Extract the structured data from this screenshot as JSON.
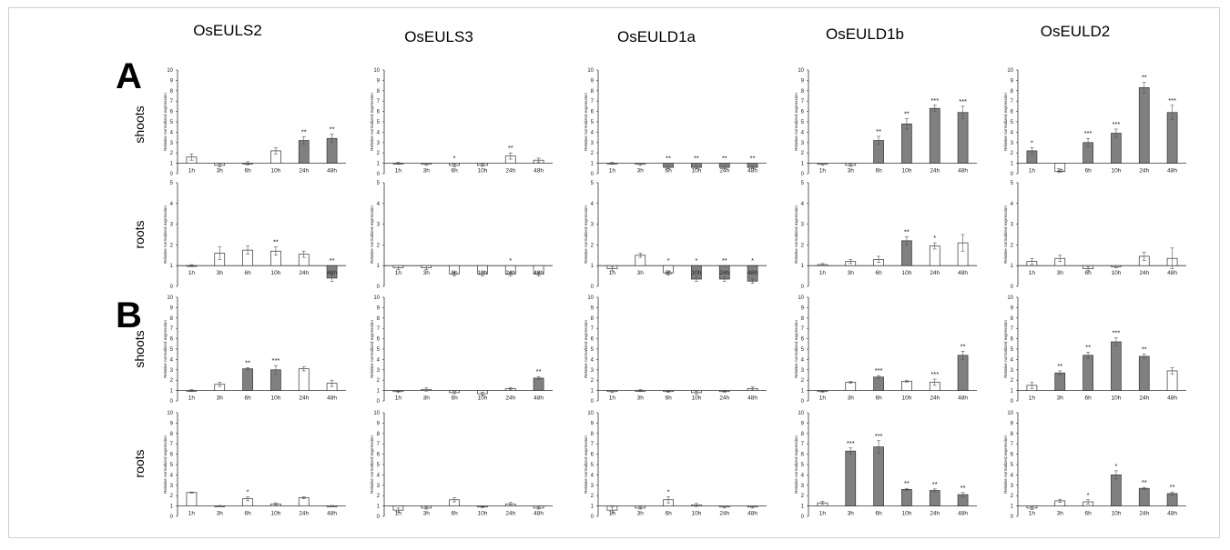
{
  "genes": [
    "OsEULS2",
    "OsEULS3",
    "OsEULD1a",
    "OsEULD1b",
    "OsEULD2"
  ],
  "panels": [
    "A",
    "B"
  ],
  "tissues": [
    "shoots",
    "roots"
  ],
  "ylabel": "Relative normalized expression",
  "categories": [
    "1h",
    "3h",
    "6h",
    "10h",
    "24h",
    "48h"
  ],
  "colors": {
    "significant": "#808080",
    "not_significant": "#ffffff",
    "outline": "#333333"
  },
  "chart_data": [
    {
      "panel": "A",
      "tissue": "shoots",
      "gene": "OsEULS2",
      "type": "bar",
      "ylim": [
        0,
        10
      ],
      "values": [
        1.6,
        0.8,
        1.0,
        2.2,
        3.2,
        3.4
      ],
      "errors": [
        0.3,
        0.15,
        0.15,
        0.3,
        0.35,
        0.4
      ],
      "significant": [
        false,
        false,
        false,
        false,
        true,
        true
      ],
      "stars": [
        "",
        "",
        "",
        "",
        "**",
        "**"
      ]
    },
    {
      "panel": "A",
      "tissue": "shoots",
      "gene": "OsEULS3",
      "type": "bar",
      "ylim": [
        0,
        10
      ],
      "values": [
        1.0,
        0.9,
        0.8,
        0.8,
        1.7,
        1.3
      ],
      "errors": [
        0.1,
        0.1,
        0.15,
        0.1,
        0.3,
        0.2
      ],
      "significant": [
        false,
        false,
        false,
        false,
        false,
        false
      ],
      "stars": [
        "",
        "",
        "*",
        "",
        "**",
        ""
      ]
    },
    {
      "panel": "A",
      "tissue": "shoots",
      "gene": "OsEULD1a",
      "type": "bar",
      "ylim": [
        0,
        10
      ],
      "values": [
        1.0,
        0.9,
        0.6,
        0.6,
        0.6,
        0.6
      ],
      "errors": [
        0.1,
        0.1,
        0.1,
        0.1,
        0.1,
        0.1
      ],
      "significant": [
        false,
        false,
        true,
        true,
        true,
        true
      ],
      "stars": [
        "",
        "",
        "**",
        "**",
        "**",
        "**"
      ]
    },
    {
      "panel": "A",
      "tissue": "shoots",
      "gene": "OsEULD1b",
      "type": "bar",
      "ylim": [
        0,
        10
      ],
      "values": [
        0.9,
        0.8,
        3.2,
        4.8,
        6.3,
        5.9
      ],
      "errors": [
        0.1,
        0.1,
        0.4,
        0.5,
        0.3,
        0.6
      ],
      "significant": [
        false,
        false,
        true,
        true,
        true,
        true
      ],
      "stars": [
        "",
        "",
        "**",
        "**",
        "***",
        "***"
      ]
    },
    {
      "panel": "A",
      "tissue": "shoots",
      "gene": "OsEULD2",
      "type": "bar",
      "ylim": [
        0,
        10
      ],
      "values": [
        2.2,
        0.2,
        3.0,
        3.9,
        8.3,
        5.9
      ],
      "errors": [
        0.3,
        0.05,
        0.4,
        0.4,
        0.5,
        0.7
      ],
      "significant": [
        true,
        false,
        true,
        true,
        true,
        true
      ],
      "stars": [
        "*",
        "",
        "***",
        "***",
        "**",
        "***"
      ]
    },
    {
      "panel": "A",
      "tissue": "roots",
      "gene": "OsEULS2",
      "type": "bar",
      "ylim": [
        0,
        5
      ],
      "values": [
        1.0,
        1.6,
        1.75,
        1.7,
        1.55,
        0.4
      ],
      "errors": [
        0.05,
        0.3,
        0.2,
        0.2,
        0.15,
        0.15
      ],
      "significant": [
        false,
        false,
        false,
        false,
        false,
        true
      ],
      "stars": [
        "",
        "",
        "",
        "**",
        "",
        "**"
      ]
    },
    {
      "panel": "A",
      "tissue": "roots",
      "gene": "OsEULS3",
      "type": "bar",
      "ylim": [
        0,
        5
      ],
      "values": [
        0.9,
        0.9,
        0.6,
        0.6,
        0.6,
        0.6
      ],
      "errors": [
        0.1,
        0.1,
        0.1,
        0.1,
        0.1,
        0.1
      ],
      "significant": [
        false,
        false,
        false,
        false,
        false,
        false
      ],
      "stars": [
        "",
        "",
        "",
        "",
        "*",
        ""
      ]
    },
    {
      "panel": "A",
      "tissue": "roots",
      "gene": "OsEULD1a",
      "type": "bar",
      "ylim": [
        0,
        5
      ],
      "values": [
        0.85,
        1.5,
        0.65,
        0.35,
        0.35,
        0.25
      ],
      "errors": [
        0.1,
        0.1,
        0.1,
        0.1,
        0.1,
        0.1
      ],
      "significant": [
        false,
        false,
        false,
        true,
        true,
        true
      ],
      "stars": [
        "",
        "",
        "*",
        "*",
        "**",
        "*"
      ]
    },
    {
      "panel": "A",
      "tissue": "roots",
      "gene": "OsEULD1b",
      "type": "bar",
      "ylim": [
        0,
        5
      ],
      "values": [
        1.05,
        1.2,
        1.3,
        2.2,
        1.95,
        2.1
      ],
      "errors": [
        0.05,
        0.1,
        0.15,
        0.2,
        0.15,
        0.4
      ],
      "significant": [
        false,
        false,
        false,
        true,
        false,
        false
      ],
      "stars": [
        "",
        "",
        "",
        "**",
        "*",
        ""
      ]
    },
    {
      "panel": "A",
      "tissue": "roots",
      "gene": "OsEULD2",
      "type": "bar",
      "ylim": [
        0,
        5
      ],
      "values": [
        1.2,
        1.35,
        0.85,
        0.95,
        1.45,
        1.35
      ],
      "errors": [
        0.15,
        0.15,
        0.1,
        0.05,
        0.2,
        0.5
      ],
      "significant": [
        false,
        false,
        false,
        false,
        false,
        false
      ],
      "stars": [
        "",
        "",
        "",
        "",
        "",
        ""
      ]
    },
    {
      "panel": "B",
      "tissue": "shoots",
      "gene": "OsEULS2",
      "type": "bar",
      "ylim": [
        0,
        10
      ],
      "values": [
        1.0,
        1.6,
        3.1,
        3.0,
        3.1,
        1.7
      ],
      "errors": [
        0.1,
        0.2,
        0.1,
        0.4,
        0.2,
        0.3
      ],
      "significant": [
        false,
        false,
        true,
        true,
        false,
        false
      ],
      "stars": [
        "",
        "",
        "**",
        "***",
        "",
        ""
      ]
    },
    {
      "panel": "B",
      "tissue": "shoots",
      "gene": "OsEULS3",
      "type": "bar",
      "ylim": [
        0,
        10
      ],
      "values": [
        0.9,
        1.1,
        0.8,
        0.7,
        1.2,
        2.2
      ],
      "errors": [
        0.05,
        0.15,
        0.1,
        0.15,
        0.1,
        0.15
      ],
      "significant": [
        false,
        false,
        false,
        false,
        false,
        true
      ],
      "stars": [
        "",
        "",
        "",
        "",
        "",
        "**"
      ]
    },
    {
      "panel": "B",
      "tissue": "shoots",
      "gene": "OsEULD1a",
      "type": "bar",
      "ylim": [
        0,
        10
      ],
      "values": [
        0.9,
        1.0,
        0.9,
        0.8,
        0.9,
        1.2
      ],
      "errors": [
        0.1,
        0.1,
        0.05,
        0.15,
        0.05,
        0.15
      ],
      "significant": [
        false,
        false,
        false,
        false,
        false,
        false
      ],
      "stars": [
        "",
        "",
        "",
        "",
        "",
        ""
      ]
    },
    {
      "panel": "B",
      "tissue": "shoots",
      "gene": "OsEULD1b",
      "type": "bar",
      "ylim": [
        0,
        10
      ],
      "values": [
        0.9,
        1.8,
        2.3,
        1.9,
        1.8,
        4.4
      ],
      "errors": [
        0.05,
        0.1,
        0.15,
        0.1,
        0.3,
        0.4
      ],
      "significant": [
        false,
        false,
        true,
        false,
        false,
        true
      ],
      "stars": [
        "",
        "",
        "***",
        "",
        "***",
        "**"
      ]
    },
    {
      "panel": "B",
      "tissue": "shoots",
      "gene": "OsEULD2",
      "type": "bar",
      "ylim": [
        0,
        10
      ],
      "values": [
        1.5,
        2.7,
        4.4,
        5.7,
        4.3,
        2.9
      ],
      "errors": [
        0.3,
        0.2,
        0.3,
        0.4,
        0.2,
        0.3
      ],
      "significant": [
        false,
        true,
        true,
        true,
        true,
        false
      ],
      "stars": [
        "",
        "**",
        "**",
        "***",
        "**",
        ""
      ]
    },
    {
      "panel": "B",
      "tissue": "roots",
      "gene": "OsEULS2",
      "type": "bar",
      "ylim": [
        0,
        10
      ],
      "values": [
        2.3,
        1.0,
        1.7,
        1.2,
        1.8,
        1.0
      ],
      "errors": [
        0.05,
        0.05,
        0.2,
        0.1,
        0.1,
        0.05
      ],
      "significant": [
        false,
        false,
        false,
        false,
        false,
        false
      ],
      "stars": [
        "",
        "",
        "*",
        "",
        "",
        ""
      ]
    },
    {
      "panel": "B",
      "tissue": "roots",
      "gene": "OsEULS3",
      "type": "bar",
      "ylim": [
        0,
        10
      ],
      "values": [
        0.6,
        0.8,
        1.6,
        0.9,
        1.2,
        0.8
      ],
      "errors": [
        0.2,
        0.1,
        0.2,
        0.05,
        0.15,
        0.1
      ],
      "significant": [
        false,
        false,
        false,
        false,
        false,
        false
      ],
      "stars": [
        "",
        "",
        "",
        "",
        "",
        ""
      ]
    },
    {
      "panel": "B",
      "tissue": "roots",
      "gene": "OsEULD1a",
      "type": "bar",
      "ylim": [
        0,
        10
      ],
      "values": [
        0.6,
        0.8,
        1.6,
        1.1,
        0.9,
        0.9
      ],
      "errors": [
        0.3,
        0.1,
        0.3,
        0.15,
        0.1,
        0.1
      ],
      "significant": [
        false,
        false,
        false,
        false,
        false,
        false
      ],
      "stars": [
        "",
        "",
        "*",
        "",
        "",
        ""
      ]
    },
    {
      "panel": "B",
      "tissue": "roots",
      "gene": "OsEULD1b",
      "type": "bar",
      "ylim": [
        0,
        10
      ],
      "values": [
        1.3,
        6.3,
        6.7,
        2.6,
        2.5,
        2.1
      ],
      "errors": [
        0.15,
        0.3,
        0.6,
        0.1,
        0.15,
        0.2
      ],
      "significant": [
        false,
        true,
        true,
        true,
        true,
        true
      ],
      "stars": [
        "",
        "***",
        "***",
        "**",
        "**",
        "**"
      ]
    },
    {
      "panel": "B",
      "tissue": "roots",
      "gene": "OsEULD2",
      "type": "bar",
      "ylim": [
        0,
        10
      ],
      "values": [
        0.8,
        1.5,
        1.4,
        4.0,
        2.7,
        2.2
      ],
      "errors": [
        0.15,
        0.15,
        0.2,
        0.4,
        0.1,
        0.15
      ],
      "significant": [
        false,
        false,
        false,
        true,
        true,
        true
      ],
      "stars": [
        "",
        "",
        "*",
        "*",
        "**",
        "**"
      ]
    }
  ]
}
